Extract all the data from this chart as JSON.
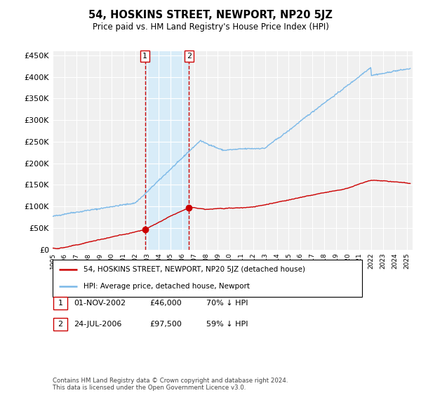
{
  "title": "54, HOSKINS STREET, NEWPORT, NP20 5JZ",
  "subtitle": "Price paid vs. HM Land Registry's House Price Index (HPI)",
  "ylabel_ticks": [
    "£0",
    "£50K",
    "£100K",
    "£150K",
    "£200K",
    "£250K",
    "£300K",
    "£350K",
    "£400K",
    "£450K"
  ],
  "ytick_values": [
    0,
    50000,
    100000,
    150000,
    200000,
    250000,
    300000,
    350000,
    400000,
    450000
  ],
  "ylim": [
    0,
    460000
  ],
  "xlim_start": 1995.0,
  "xlim_end": 2025.5,
  "hpi_color": "#7ab8e8",
  "price_color": "#cc0000",
  "sale1_date": 2002.83,
  "sale1_price": 46000,
  "sale2_date": 2006.56,
  "sale2_price": 97500,
  "vline_color": "#cc0000",
  "shade_color": "#d8ecf8",
  "legend_label_red": "54, HOSKINS STREET, NEWPORT, NP20 5JZ (detached house)",
  "legend_label_blue": "HPI: Average price, detached house, Newport",
  "table_row1": [
    "1",
    "01-NOV-2002",
    "£46,000",
    "70% ↓ HPI"
  ],
  "table_row2": [
    "2",
    "24-JUL-2006",
    "£97,500",
    "59% ↓ HPI"
  ],
  "footer": "Contains HM Land Registry data © Crown copyright and database right 2024.\nThis data is licensed under the Open Government Licence v3.0.",
  "background_color": "#ffffff",
  "plot_bg_color": "#f0f0f0"
}
